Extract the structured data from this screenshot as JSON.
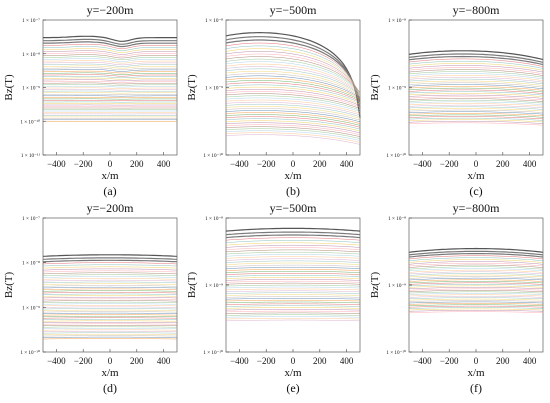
{
  "figure": {
    "panel_labels": [
      "(a)",
      "(b)",
      "(c)",
      "(d)",
      "(e)",
      "(f)"
    ]
  },
  "palette": [
    "#4e79a7",
    "#f28e2b",
    "#59a14f",
    "#e15759",
    "#76b7b2",
    "#edc948",
    "#b07aa1",
    "#ff9da7",
    "#9c755f",
    "#8cc084",
    "#a0cbe8",
    "#ffbe7d",
    "#d4a6c8",
    "#86bcb6",
    "#f1ce63",
    "#bab0ac"
  ],
  "chart_data": [
    {
      "type": "line",
      "title": "y=−200m",
      "xlabel": "x/m",
      "ylabel": "Bz(T)",
      "panel_label": "(a)",
      "x_range": [
        -500,
        500
      ],
      "x_ticks": [
        -400,
        -200,
        0,
        200,
        400
      ],
      "y_scale": "log",
      "y_range": [
        1e-11,
        1e-07
      ],
      "y_tick_labels": [
        "1 × 10⁻⁷",
        "1 × 10⁻⁸",
        "1 × 10⁻⁹",
        "1 × 10⁻¹⁰",
        "1 × 10⁻¹¹"
      ],
      "y_tick_values": [
        1e-07,
        1e-08,
        1e-09,
        1e-10,
        1e-11
      ],
      "num_curves": 50,
      "curves_top": 3e-08,
      "curves_bottom": 1e-10,
      "anomaly": {
        "center": -180,
        "width": 150,
        "dip": 0.45,
        "right_plateau": 0.8
      }
    },
    {
      "type": "line",
      "title": "y=−500m",
      "xlabel": "x/m",
      "ylabel": "Bz(T)",
      "panel_label": "(b)",
      "x_range": [
        -500,
        500
      ],
      "x_ticks": [
        -400,
        -200,
        0,
        200,
        400
      ],
      "y_scale": "log",
      "y_range": [
        1e-10,
        1e-08
      ],
      "y_tick_labels": [
        "1 × 10⁻⁸",
        "1 × 10⁻⁹",
        "1 × 10⁻¹⁰"
      ],
      "y_tick_values": [
        1e-08,
        1e-09,
        1e-10
      ],
      "num_curves": 45,
      "curves_top": 6.5e-09,
      "curves_bottom": 2e-10,
      "shape": {
        "center": -250,
        "slope": 0.28
      }
    },
    {
      "type": "line",
      "title": "y=−800m",
      "xlabel": "x/m",
      "ylabel": "Bz(T)",
      "panel_label": "(c)",
      "x_range": [
        -500,
        500
      ],
      "x_ticks": [
        -400,
        -200,
        0,
        200,
        400
      ],
      "y_scale": "log",
      "y_range": [
        1e-10,
        1e-08
      ],
      "y_tick_labels": [
        "1 × 10⁻⁸",
        "1 × 10⁻⁹",
        "1 × 10⁻¹⁰"
      ],
      "y_tick_values": [
        1e-08,
        1e-09,
        1e-10
      ],
      "num_curves": 40,
      "curves_top": 3.5e-09,
      "curves_bottom": 3e-10,
      "shape": {
        "center": -100,
        "slope": 0.12
      }
    },
    {
      "type": "line",
      "title": "y=−200m",
      "xlabel": "x/m",
      "ylabel": "Bz(T)",
      "panel_label": "(d)",
      "x_range": [
        -500,
        500
      ],
      "x_ticks": [
        -400,
        -200,
        0,
        200,
        400
      ],
      "y_scale": "log",
      "y_range": [
        1e-10,
        1e-07
      ],
      "y_tick_labels": [
        "1 × 10⁻⁷",
        "1 × 10⁻⁸",
        "1 × 10⁻⁹",
        "1 × 10⁻¹⁰"
      ],
      "y_tick_values": [
        1e-07,
        1e-08,
        1e-09,
        1e-10
      ],
      "num_curves": 50,
      "curves_top": 1.5e-08,
      "curves_bottom": 2e-10,
      "shape": {
        "center": 0,
        "slope": 0.05
      }
    },
    {
      "type": "line",
      "title": "y=−500m",
      "xlabel": "x/m",
      "ylabel": "Bz(T)",
      "panel_label": "(e)",
      "x_range": [
        -500,
        500
      ],
      "x_ticks": [
        -400,
        -200,
        0,
        200,
        400
      ],
      "y_scale": "log",
      "y_range": [
        1e-10,
        1e-08
      ],
      "y_tick_labels": [
        "1 × 10⁻⁸",
        "1 × 10⁻⁹",
        "1 × 10⁻¹⁰"
      ],
      "y_tick_values": [
        1e-08,
        1e-09,
        1e-10
      ],
      "num_curves": 45,
      "curves_top": 7e-09,
      "curves_bottom": 3e-10,
      "shape": {
        "center": 0,
        "slope": 0.06
      }
    },
    {
      "type": "line",
      "title": "y=−800m",
      "xlabel": "x/m",
      "ylabel": "Bz(T)",
      "panel_label": "(f)",
      "x_range": [
        -500,
        500
      ],
      "x_ticks": [
        -400,
        -200,
        0,
        200,
        400
      ],
      "y_scale": "log",
      "y_range": [
        1e-10,
        1e-08
      ],
      "y_tick_labels": [
        "1 × 10⁻⁸",
        "1 × 10⁻⁹",
        "1 × 10⁻¹⁰"
      ],
      "y_tick_values": [
        1e-08,
        1e-09,
        1e-10
      ],
      "num_curves": 40,
      "curves_top": 3.5e-09,
      "curves_bottom": 4e-10,
      "shape": {
        "center": 0,
        "slope": 0.08
      }
    }
  ]
}
